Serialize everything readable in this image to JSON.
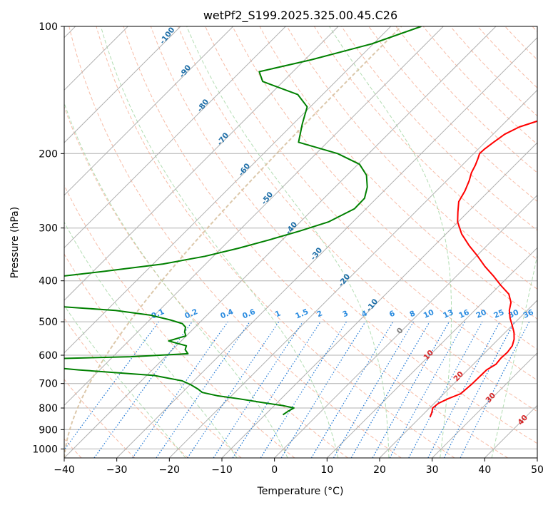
{
  "chart_data": {
    "type": "line",
    "title": "wetPf2_S199.2025.325.00.45.C26",
    "xlabel": "Temperature (°C)",
    "ylabel": "Pressure (hPa)",
    "xlim": [
      -40,
      50
    ],
    "ylim_hpa": [
      1050,
      100
    ],
    "y_scale": "log",
    "skew": true,
    "x_ticks": [
      -40,
      -30,
      -20,
      -10,
      0,
      10,
      20,
      30,
      40,
      50
    ],
    "y_ticks": [
      100,
      200,
      300,
      400,
      500,
      600,
      700,
      800,
      900,
      1000
    ],
    "grid": true,
    "series": [
      {
        "role": "temperature",
        "color": "#ff0000",
        "p": [
          840,
          820,
          800,
          780,
          760,
          740,
          700,
          650,
          630,
          610,
          590,
          570,
          550,
          530,
          510,
          490,
          470,
          450,
          430,
          410,
          390,
          370,
          350,
          330,
          310,
          290,
          275,
          260,
          245,
          232,
          222,
          213,
          206,
          200,
          195,
          188,
          180,
          173,
          168,
          160,
          150,
          140,
          130,
          120,
          112,
          105,
          100
        ],
        "t": [
          21.8,
          21.3,
          20.6,
          20.8,
          21.8,
          23.2,
          23.5,
          23.6,
          24.3,
          24.1,
          24.2,
          23.9,
          23.0,
          21.7,
          20.0,
          18.2,
          16.6,
          15.4,
          13.4,
          10.2,
          7.1,
          3.6,
          0.3,
          -3.4,
          -7.0,
          -10.1,
          -11.9,
          -13.7,
          -14.6,
          -15.7,
          -16.8,
          -17.5,
          -18.2,
          -18.9,
          -18.8,
          -18.4,
          -17.8,
          -16.4,
          -14.3,
          -10.5,
          -9.0,
          -10.7,
          -14.9,
          -20.7,
          -25.2,
          -28.9,
          -31.1
        ]
      },
      {
        "role": "dewpoint",
        "color": "#008000",
        "p": [
          830,
          815,
          800,
          790,
          775,
          760,
          748,
          735,
          722,
          705,
          690,
          670,
          650,
          630,
          615,
          605,
          595,
          582,
          570,
          555,
          540,
          528,
          515,
          505,
          495,
          482,
          470,
          460,
          455,
          450,
          440,
          425,
          415,
          405,
          400,
          392,
          380,
          365,
          350,
          335,
          320,
          305,
          290,
          270,
          255,
          240,
          225,
          212,
          200,
          188,
          170,
          155,
          145,
          135,
          128,
          120,
          110,
          100
        ],
        "td": [
          -6.6,
          -6.3,
          -5.8,
          -8.2,
          -13.3,
          -18.3,
          -22.8,
          -26.2,
          -27.6,
          -29.8,
          -32.2,
          -38.6,
          -54.0,
          -67.3,
          -69.0,
          -46.6,
          -36.3,
          -37.6,
          -38.1,
          -42.4,
          -40.1,
          -41.1,
          -41.8,
          -43.1,
          -46.1,
          -50.9,
          -58.3,
          -70.2,
          -79.0,
          -84.0,
          -91.0,
          -94.2,
          -95.0,
          -93.8,
          -91.7,
          -76.3,
          -68.0,
          -58.1,
          -51.6,
          -46.8,
          -42.5,
          -38.4,
          -34.6,
          -32.2,
          -32.3,
          -33.9,
          -36.3,
          -39.7,
          -45.9,
          -55.5,
          -58.3,
          -60.6,
          -64.7,
          -73.9,
          -76.4,
          -68.8,
          -60.3,
          -54.2
        ]
      }
    ],
    "dry_adiabat_labels": [
      "-100",
      "-90",
      "-80",
      "-70",
      "-60",
      "-50",
      "-40",
      "-30",
      "-20",
      "-10"
    ],
    "moist_adiabat_labels": [
      "0",
      "10",
      "20",
      "30",
      "40"
    ],
    "mixing_ratio_labels": [
      "0.1",
      "0.2",
      "0.4",
      "0.6",
      "1",
      "1.5",
      "2",
      "3",
      "4",
      "6",
      "8",
      "10",
      "13",
      "16",
      "20",
      "25",
      "30",
      "36"
    ],
    "colors": {
      "isotherm": "#b0b0b0",
      "isobar": "#b0b0b0",
      "dry_adiabat": "#f4a58a",
      "moist_adiabat": "#9fd49f",
      "mixing_ratio": "#1f77d4",
      "dry_label": "#1f6fa8",
      "moist_label": "#d62728",
      "mixing_label": "#2b8ce0",
      "zero_label": "#808080",
      "curve_brown": "#d8c2a2"
    }
  }
}
